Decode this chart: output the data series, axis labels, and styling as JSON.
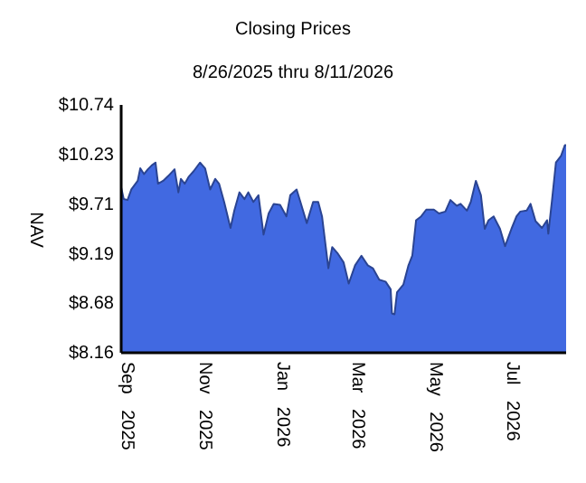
{
  "chart_data": {
    "type": "area",
    "title": "Closing Prices",
    "subtitle": "8/26/2025 thru 8/11/2026",
    "ylabel": "NAV",
    "x": [
      "2025-08-26",
      "2025-08-28",
      "2025-08-31",
      "2025-09-03",
      "2025-09-08",
      "2025-09-10",
      "2025-09-13",
      "2025-09-16",
      "2025-09-19",
      "2025-09-22",
      "2025-09-24",
      "2025-09-28",
      "2025-10-02",
      "2025-10-07",
      "2025-10-10",
      "2025-10-12",
      "2025-10-15",
      "2025-10-18",
      "2025-10-22",
      "2025-10-27",
      "2025-10-31",
      "2025-11-04",
      "2025-11-08",
      "2025-11-11",
      "2025-11-15",
      "2025-11-20",
      "2025-11-23",
      "2025-11-27",
      "2025-12-01",
      "2025-12-04",
      "2025-12-08",
      "2025-12-12",
      "2025-12-16",
      "2025-12-20",
      "2025-12-24",
      "2025-12-29",
      "2026-01-03",
      "2026-01-06",
      "2026-01-11",
      "2026-01-14",
      "2026-01-19",
      "2026-01-24",
      "2026-01-28",
      "2026-01-31",
      "2026-02-05",
      "2026-02-08",
      "2026-02-12",
      "2026-02-17",
      "2026-02-21",
      "2026-02-26",
      "2026-03-03",
      "2026-03-08",
      "2026-03-12",
      "2026-03-17",
      "2026-03-22",
      "2026-03-26",
      "2026-03-27",
      "2026-03-29",
      "2026-03-31",
      "2026-04-05",
      "2026-04-09",
      "2026-04-12",
      "2026-04-15",
      "2026-04-19",
      "2026-04-23",
      "2026-04-29",
      "2026-05-03",
      "2026-05-08",
      "2026-05-12",
      "2026-05-17",
      "2026-05-20",
      "2026-05-25",
      "2026-05-28",
      "2026-06-01",
      "2026-06-05",
      "2026-06-08",
      "2026-06-11",
      "2026-06-15",
      "2026-06-20",
      "2026-06-24",
      "2026-06-29",
      "2026-07-03",
      "2026-07-06",
      "2026-07-11",
      "2026-07-14",
      "2026-07-18",
      "2026-07-23",
      "2026-07-27",
      "2026-07-28",
      "2026-07-31",
      "2026-08-03",
      "2026-08-07",
      "2026-08-10",
      "2026-08-11"
    ],
    "series": [
      {
        "color": "#4169e1",
        "values": [
          9.88,
          9.76,
          9.75,
          9.86,
          9.95,
          10.08,
          10.02,
          10.07,
          10.11,
          10.14,
          9.92,
          9.95,
          10.0,
          10.07,
          9.83,
          9.97,
          9.92,
          9.99,
          10.05,
          10.14,
          10.08,
          9.86,
          9.97,
          9.92,
          9.73,
          9.46,
          9.64,
          9.83,
          9.76,
          9.83,
          9.73,
          9.8,
          9.39,
          9.61,
          9.71,
          9.7,
          9.58,
          9.8,
          9.86,
          9.73,
          9.51,
          9.73,
          9.73,
          9.58,
          9.04,
          9.26,
          9.2,
          9.1,
          8.88,
          9.07,
          9.17,
          9.07,
          9.04,
          8.92,
          8.9,
          8.82,
          8.57,
          8.56,
          8.79,
          8.87,
          9.07,
          9.17,
          9.54,
          9.58,
          9.65,
          9.65,
          9.61,
          9.63,
          9.75,
          9.69,
          9.71,
          9.64,
          9.73,
          9.95,
          9.8,
          9.45,
          9.54,
          9.58,
          9.45,
          9.27,
          9.45,
          9.58,
          9.63,
          9.64,
          9.71,
          9.53,
          9.46,
          9.54,
          9.4,
          9.76,
          10.14,
          10.21,
          10.32,
          10.32
        ]
      }
    ],
    "xlim": [
      "2025-08-26",
      "2026-08-11"
    ],
    "xticks": [
      {
        "value": "2025-09-01",
        "label": "Sep 2025"
      },
      {
        "value": "2025-11-01",
        "label": "Nov 2025"
      },
      {
        "value": "2026-01-01",
        "label": "Jan 2026"
      },
      {
        "value": "2026-03-01",
        "label": "Mar 2026"
      },
      {
        "value": "2026-05-01",
        "label": "May 2026"
      },
      {
        "value": "2026-07-01",
        "label": "Jul 2026"
      }
    ],
    "ylim": [
      8.16,
      10.74
    ],
    "yticks": [
      {
        "value": 8.16,
        "label": "$8.16"
      },
      {
        "value": 8.68,
        "label": "$8.68"
      },
      {
        "value": 9.19,
        "label": "$9.19"
      },
      {
        "value": 9.71,
        "label": "$9.71"
      },
      {
        "value": 10.23,
        "label": "$10.23"
      },
      {
        "value": 10.74,
        "label": "$10.74"
      }
    ]
  }
}
